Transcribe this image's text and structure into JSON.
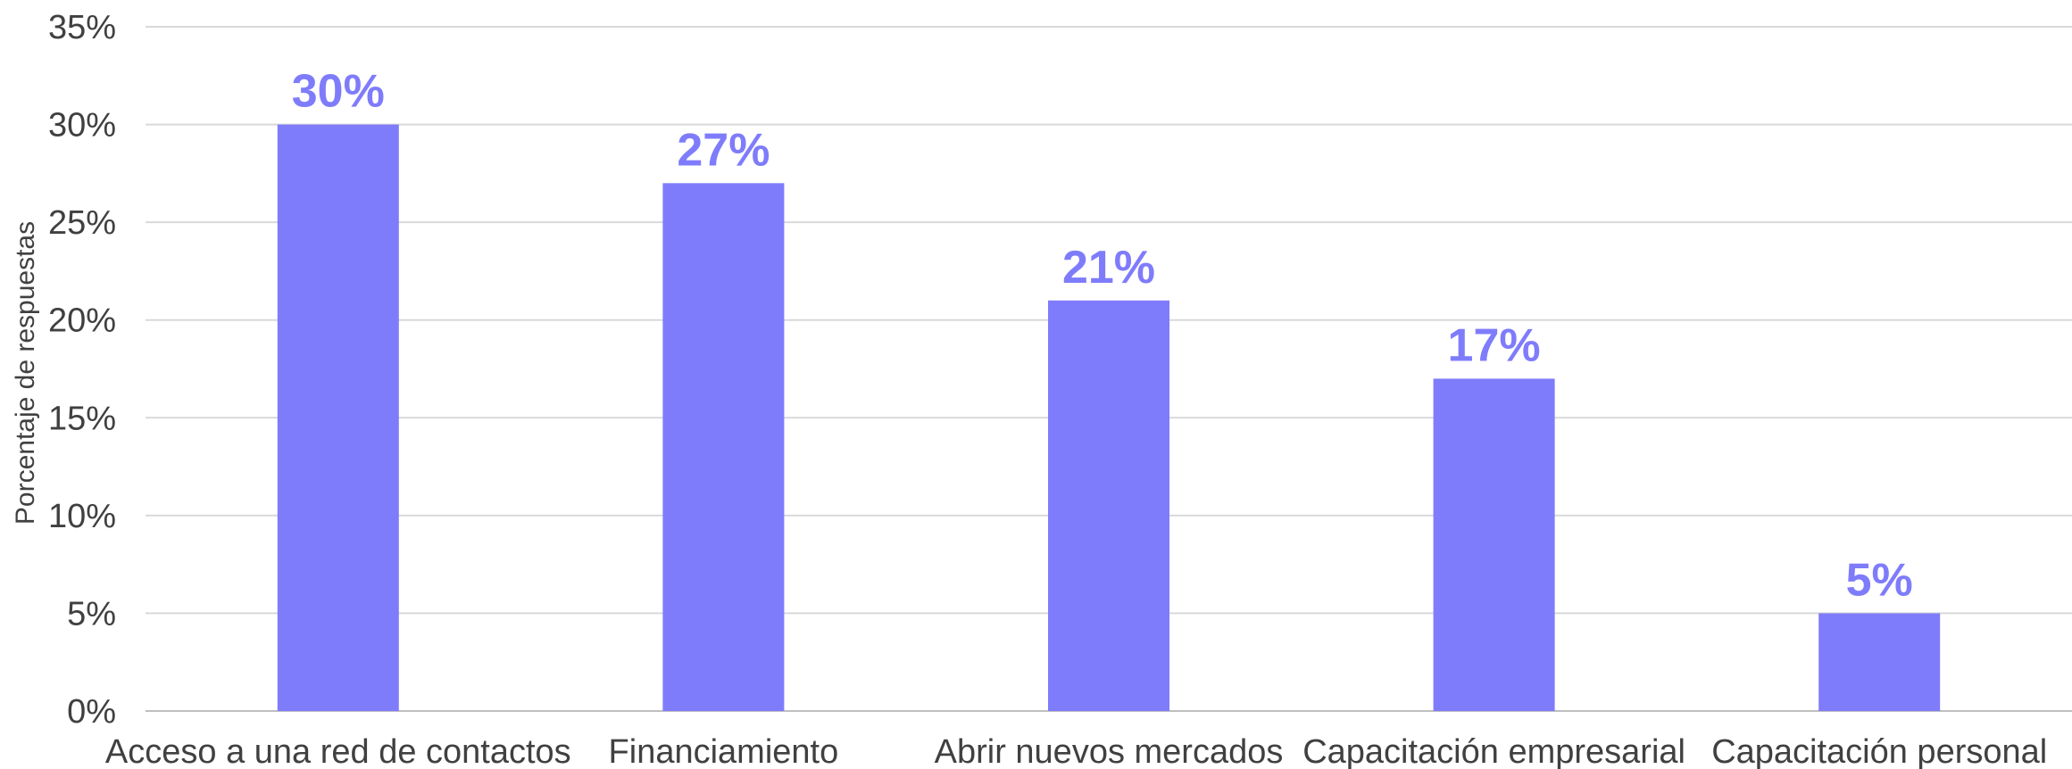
{
  "chart_data": {
    "type": "bar",
    "categories": [
      "Acceso a una red de contactos",
      "Financiamiento",
      "Abrir nuevos mercados",
      "Capacitación empresarial",
      "Capacitación personal"
    ],
    "values": [
      30,
      27,
      21,
      17,
      5
    ],
    "value_labels": [
      "30%",
      "27%",
      "21%",
      "17%",
      "5%"
    ],
    "title": "",
    "xlabel": "",
    "ylabel": "Porcentaje de respuestas",
    "ylim": [
      0,
      35
    ],
    "y_ticks": [
      "0%",
      "5%",
      "10%",
      "15%",
      "20%",
      "25%",
      "30%",
      "35%"
    ],
    "grid": true,
    "legend": "none",
    "bar_color": "#7f7cfb",
    "label_color": "#7f7cfb"
  }
}
